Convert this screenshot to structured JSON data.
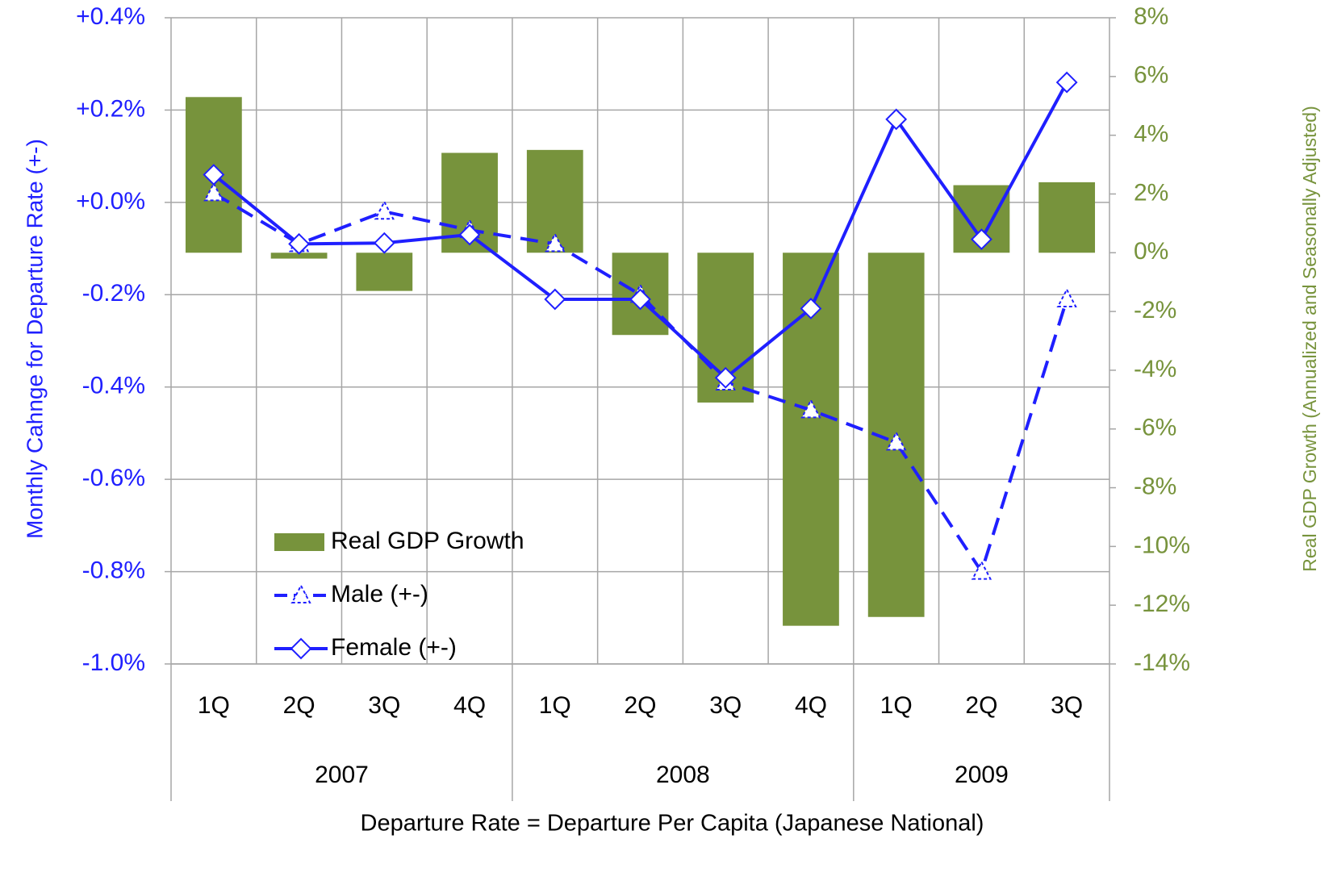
{
  "chart_data": {
    "type": "bar_line",
    "x_label": "Departure Rate = Departure Per Capita (Japanese National)",
    "y_label": "Monthly Cahnge for Departure Rate (+-)",
    "y2_label": "Real GDP Growth (Annualized and Seasonally Adjusted)",
    "categories": [
      "1Q",
      "2Q",
      "3Q",
      "4Q",
      "1Q",
      "2Q",
      "3Q",
      "4Q",
      "1Q",
      "2Q",
      "3Q"
    ],
    "years": [
      {
        "label": "2007",
        "count": 4
      },
      {
        "label": "2008",
        "count": 4
      },
      {
        "label": "2009",
        "count": 3
      }
    ],
    "series": [
      {
        "name": "Real GDP Growth",
        "kind": "bar",
        "axis": "y2",
        "color": "#77933c",
        "values": [
          5.3,
          -0.2,
          -1.3,
          3.4,
          3.5,
          -2.8,
          -5.1,
          -12.7,
          -12.4,
          2.3,
          2.4
        ]
      },
      {
        "name": "Male (+-)",
        "kind": "line",
        "axis": "y",
        "color": "#1f1fff",
        "dash": true,
        "marker": "triangle",
        "values": [
          0.02,
          -0.09,
          -0.02,
          -0.06,
          -0.09,
          -0.2,
          -0.39,
          -0.45,
          -0.52,
          -0.8,
          -0.21
        ]
      },
      {
        "name": "Female (+-)",
        "kind": "line",
        "axis": "y",
        "color": "#1f1fff",
        "dash": false,
        "marker": "diamond",
        "values": [
          0.06,
          -0.09,
          -0.088,
          -0.07,
          -0.21,
          -0.21,
          -0.38,
          -0.23,
          0.18,
          -0.08,
          0.26
        ]
      }
    ],
    "ylim": [
      -1.0,
      0.4
    ],
    "yticks": [
      {
        "value": 0.4,
        "label": "+0.4%"
      },
      {
        "value": 0.2,
        "label": "+0.2%"
      },
      {
        "value": 0.0,
        "label": "+0.0%"
      },
      {
        "value": -0.2,
        "label": "-0.2%"
      },
      {
        "value": -0.4,
        "label": "-0.4%"
      },
      {
        "value": -0.6,
        "label": "-0.6%"
      },
      {
        "value": -0.8,
        "label": "-0.8%"
      },
      {
        "value": -1.0,
        "label": "-1.0%"
      }
    ],
    "y2lim": [
      -14,
      8
    ],
    "y2ticks": [
      {
        "value": 8,
        "label": "8%"
      },
      {
        "value": 6,
        "label": "6%"
      },
      {
        "value": 4,
        "label": "4%"
      },
      {
        "value": 2,
        "label": "2%"
      },
      {
        "value": 0,
        "label": "0%"
      },
      {
        "value": -2,
        "label": "-2%"
      },
      {
        "value": -4,
        "label": "-4%"
      },
      {
        "value": -6,
        "label": "-6%"
      },
      {
        "value": -8,
        "label": "-8%"
      },
      {
        "value": -10,
        "label": "-10%"
      },
      {
        "value": -12,
        "label": "-12%"
      },
      {
        "value": -14,
        "label": "-14%"
      }
    ],
    "y_color": "#1f1fff",
    "y2_color": "#77933c",
    "grid": true,
    "legend": "lower left"
  }
}
